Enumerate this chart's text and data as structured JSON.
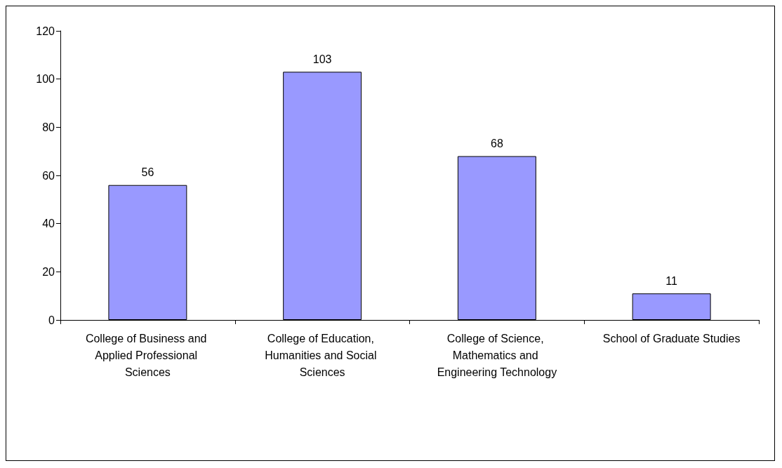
{
  "chart_data": {
    "type": "bar",
    "categories": [
      "College of Business and Applied Professional Sciences",
      "College of Education, Humanities and Social Sciences",
      "College of Science, Mathematics and Engineering Technology",
      "School of Graduate Studies"
    ],
    "values": [
      56,
      103,
      68,
      11
    ],
    "color": "#9999ff",
    "ylim": [
      0,
      120
    ],
    "yticks": [
      0,
      20,
      40,
      60,
      80,
      100,
      120
    ],
    "data_labels": true
  }
}
